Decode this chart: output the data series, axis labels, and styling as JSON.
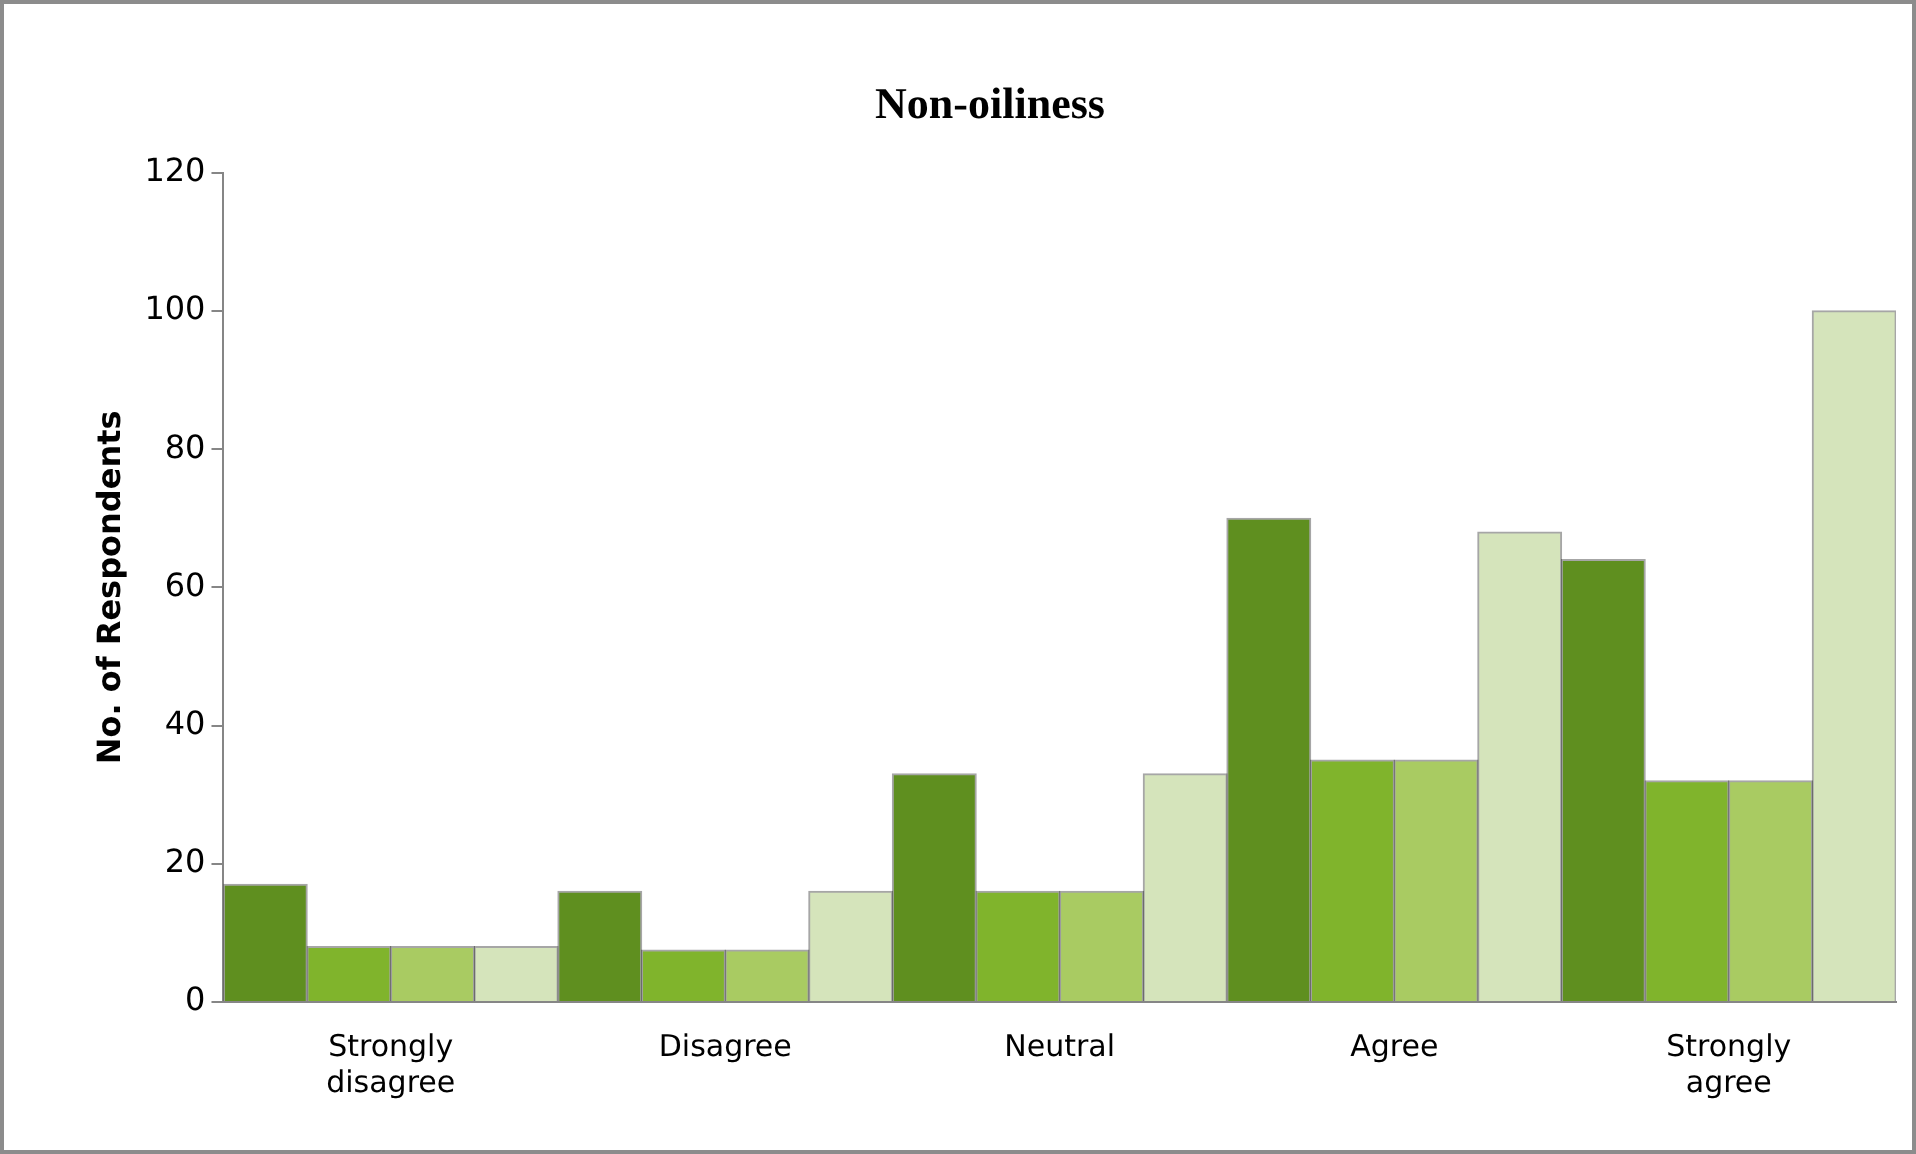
{
  "chart_data": {
    "type": "bar",
    "title": "Non-oiliness",
    "ylabel": "No. of Respondents",
    "categories": [
      "Strongly disagree",
      "Disagree",
      "Neutral",
      "Agree",
      "Strongly agree"
    ],
    "series": [
      {
        "color": "#5f8f1f",
        "values": [
          17,
          16,
          33,
          70,
          64
        ]
      },
      {
        "color": "#80b42c",
        "values": [
          8,
          7.5,
          16,
          35,
          32
        ]
      },
      {
        "color": "#a9cb62",
        "values": [
          8,
          7.5,
          16,
          35,
          32
        ]
      },
      {
        "color": "#d5e4bb",
        "values": [
          8,
          16,
          33,
          68,
          100
        ]
      }
    ],
    "ylim": [
      0,
      120
    ],
    "yticks": [
      0,
      20,
      40,
      60,
      80,
      100,
      120
    ],
    "grid": false,
    "legend": false
  }
}
